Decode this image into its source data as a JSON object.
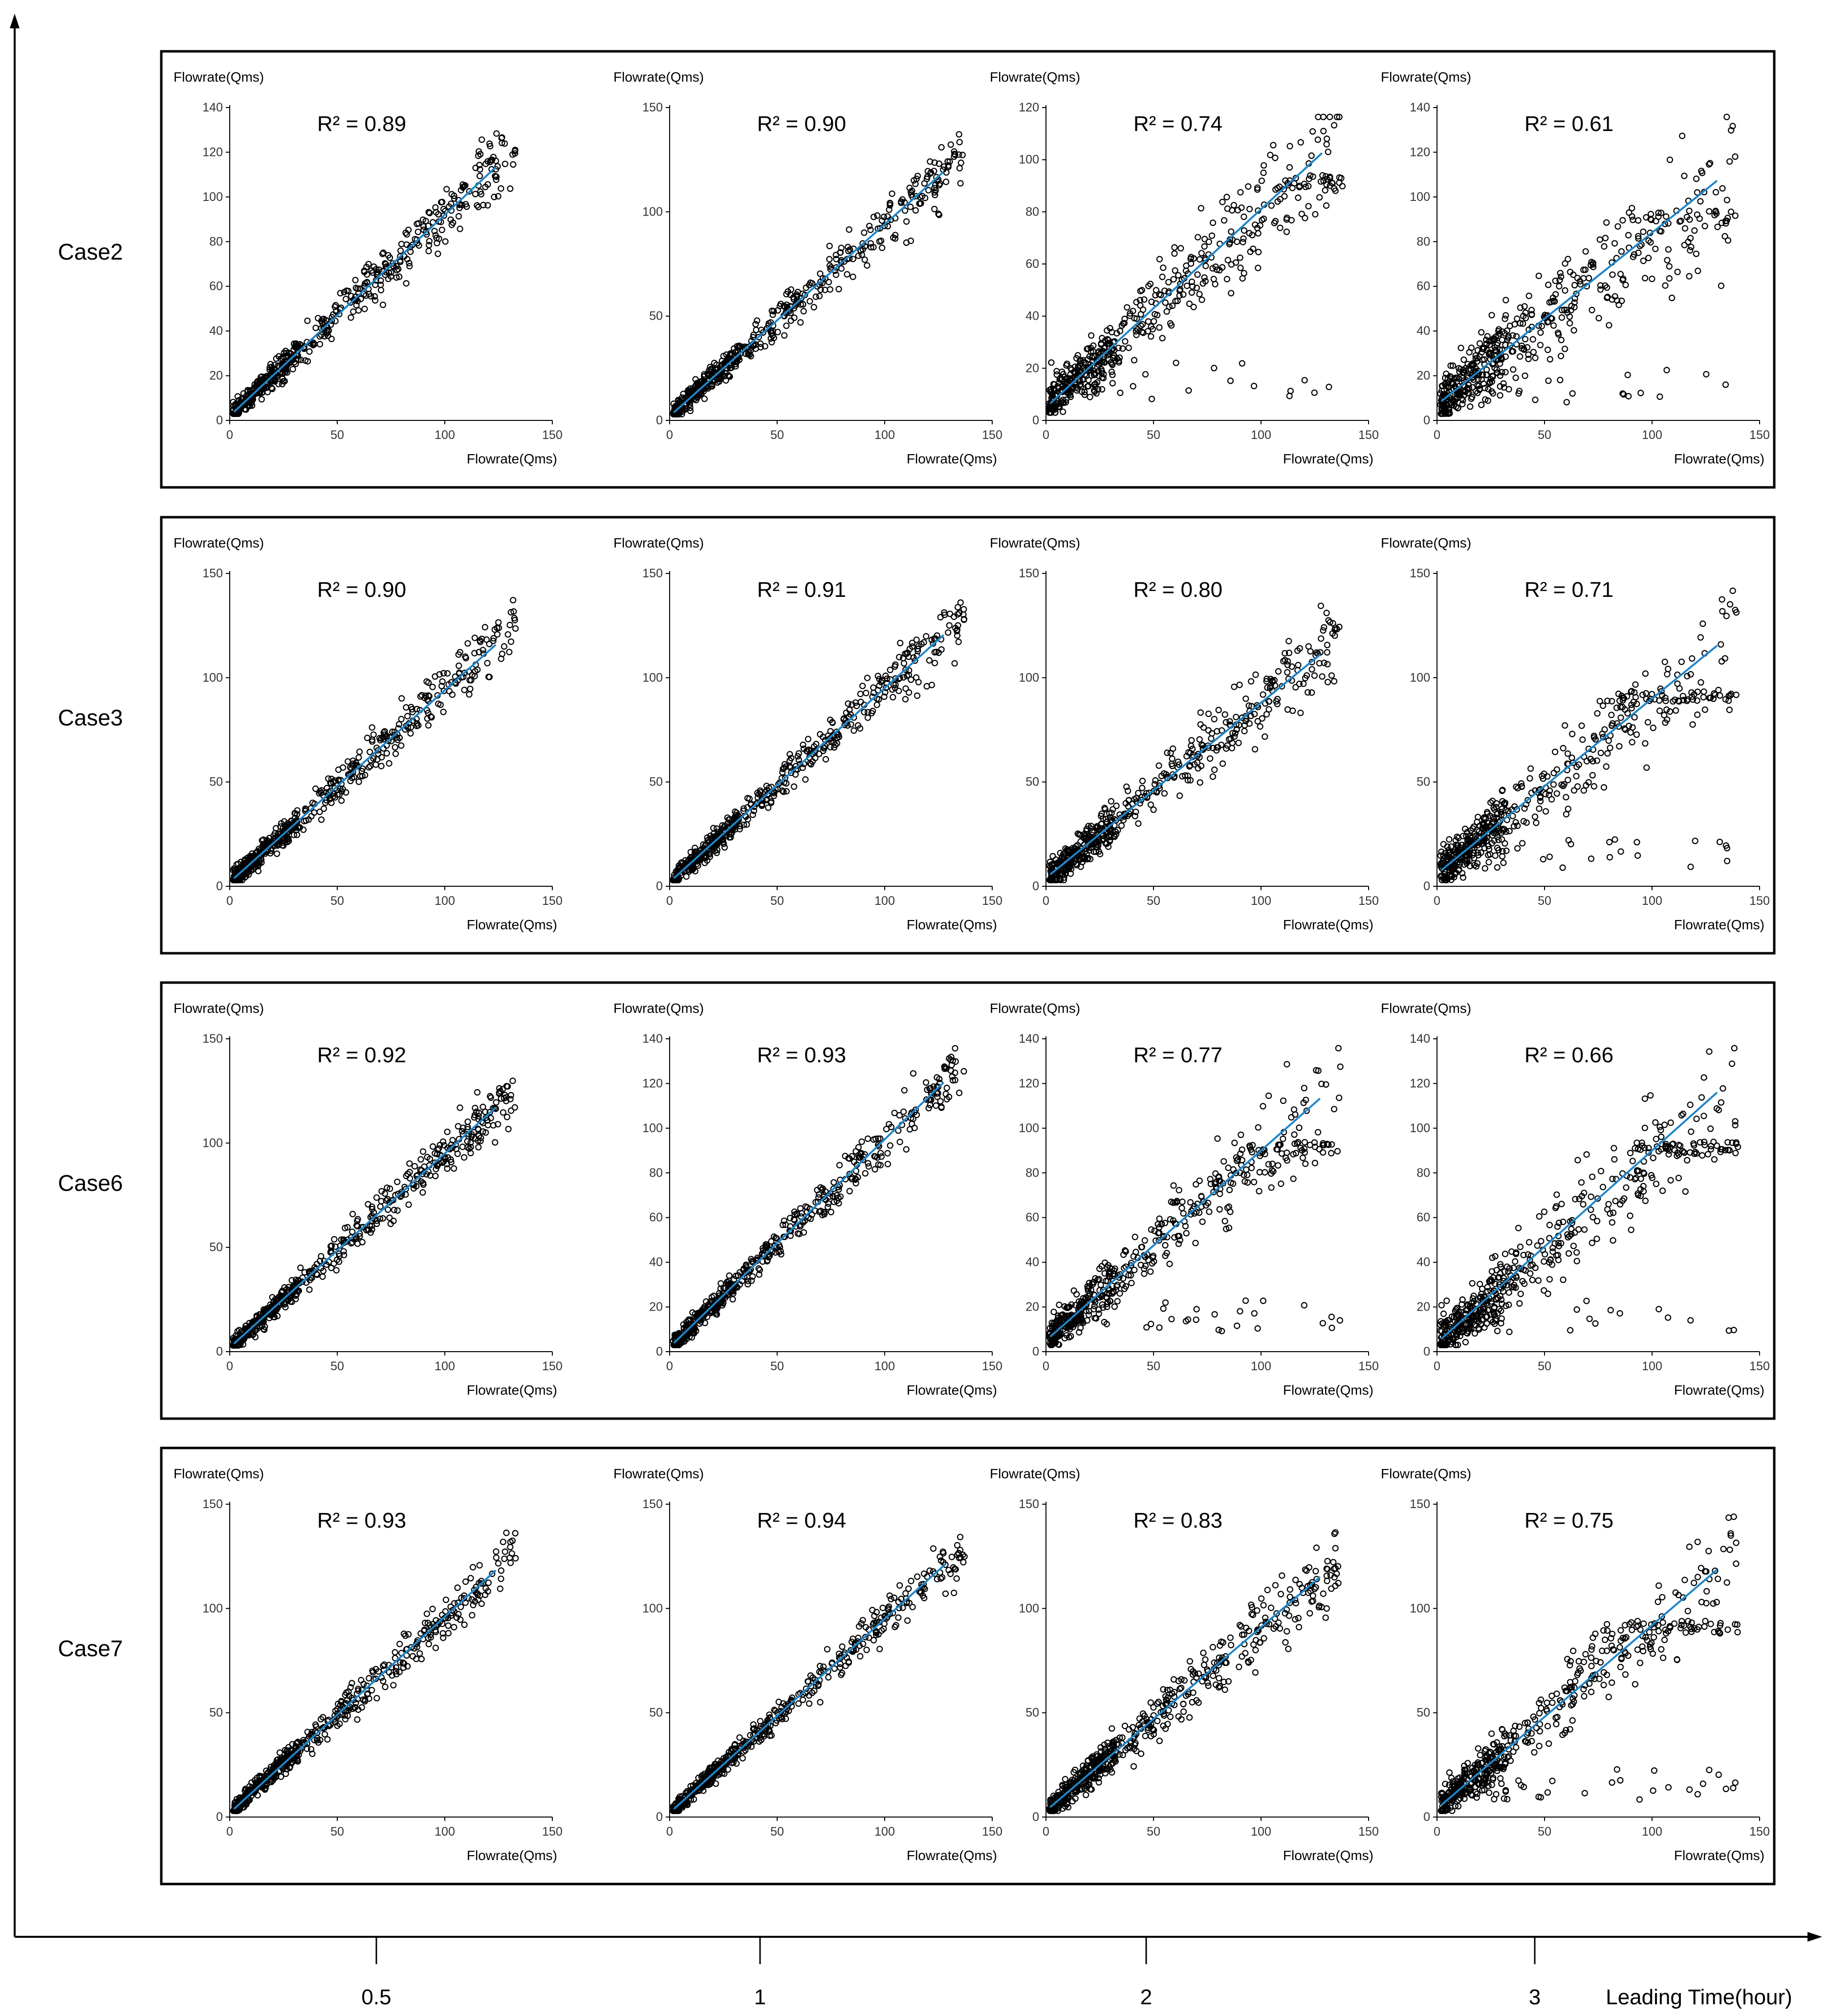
{
  "leading_time_axis": {
    "title": "Leading Time(hour)",
    "values": [
      "0.5",
      "1",
      "2",
      "3"
    ]
  },
  "chart_data": {
    "type": "scatter",
    "description_axis_titles": {
      "x": "Flowrate(Qms)",
      "y": "Flowrate(Qms)"
    },
    "rows": [
      {
        "case": "Case2",
        "panels": [
          {
            "lead": "0.5",
            "r2_text": "R² = 0.89",
            "xlim": [
              0,
              150
            ],
            "ylim": [
              0,
              140
            ],
            "xticks": [
              0,
              50,
              100,
              150
            ],
            "yticks": [
              0,
              20,
              40,
              60,
              80,
              100,
              120,
              140
            ],
            "slope": 0.9,
            "intercept": 2,
            "xmax": 133,
            "seed": 11
          },
          {
            "lead": "1",
            "r2_text": "R² = 0.90",
            "xlim": [
              0,
              150
            ],
            "ylim": [
              0,
              150
            ],
            "xticks": [
              0,
              50,
              100,
              150
            ],
            "yticks": [
              0,
              50,
              100,
              150
            ],
            "slope": 0.92,
            "intercept": 2,
            "xmax": 137,
            "seed": 12
          },
          {
            "lead": "2",
            "r2_text": "R² = 0.74",
            "xlim": [
              0,
              150
            ],
            "ylim": [
              0,
              120
            ],
            "xticks": [
              0,
              50,
              100,
              150
            ],
            "yticks": [
              0,
              20,
              40,
              60,
              80,
              100,
              120
            ],
            "slope": 0.76,
            "intercept": 5,
            "xmax": 138,
            "seed": 13
          },
          {
            "lead": "3",
            "r2_text": "R² = 0.61",
            "xlim": [
              0,
              150
            ],
            "ylim": [
              0,
              140
            ],
            "xticks": [
              0,
              50,
              100,
              150
            ],
            "yticks": [
              0,
              20,
              40,
              60,
              80,
              100,
              120,
              140
            ],
            "slope": 0.77,
            "intercept": 7,
            "xmax": 140,
            "seed": 14
          }
        ]
      },
      {
        "case": "Case3",
        "panels": [
          {
            "lead": "0.5",
            "r2_text": "R² = 0.90",
            "xlim": [
              0,
              150
            ],
            "ylim": [
              0,
              150
            ],
            "xticks": [
              0,
              50,
              100,
              150
            ],
            "yticks": [
              0,
              50,
              100,
              150
            ],
            "slope": 0.92,
            "intercept": 2,
            "xmax": 133,
            "seed": 21
          },
          {
            "lead": "1",
            "r2_text": "R² = 0.91",
            "xlim": [
              0,
              150
            ],
            "ylim": [
              0,
              150
            ],
            "xticks": [
              0,
              50,
              100,
              150
            ],
            "yticks": [
              0,
              50,
              100,
              150
            ],
            "slope": 0.93,
            "intercept": 2,
            "xmax": 137,
            "seed": 22
          },
          {
            "lead": "2",
            "r2_text": "R² = 0.80",
            "xlim": [
              0,
              150
            ],
            "ylim": [
              0,
              150
            ],
            "xticks": [
              0,
              50,
              100,
              150
            ],
            "yticks": [
              0,
              50,
              100,
              150
            ],
            "slope": 0.84,
            "intercept": 4,
            "xmax": 137,
            "seed": 23
          },
          {
            "lead": "3",
            "r2_text": "R² = 0.71",
            "xlim": [
              0,
              150
            ],
            "ylim": [
              0,
              150
            ],
            "xticks": [
              0,
              50,
              100,
              150
            ],
            "yticks": [
              0,
              50,
              100,
              150
            ],
            "slope": 0.84,
            "intercept": 6,
            "xmax": 140,
            "seed": 24
          }
        ]
      },
      {
        "case": "Case6",
        "panels": [
          {
            "lead": "0.5",
            "r2_text": "R² = 0.92",
            "xlim": [
              0,
              150
            ],
            "ylim": [
              0,
              150
            ],
            "xticks": [
              0,
              50,
              100,
              150
            ],
            "yticks": [
              0,
              50,
              100,
              150
            ],
            "slope": 0.93,
            "intercept": 2,
            "xmax": 133,
            "seed": 31
          },
          {
            "lead": "1",
            "r2_text": "R² = 0.93",
            "xlim": [
              0,
              150
            ],
            "ylim": [
              0,
              140
            ],
            "xticks": [
              0,
              50,
              100,
              150
            ],
            "yticks": [
              0,
              20,
              40,
              60,
              80,
              100,
              120,
              140
            ],
            "slope": 0.93,
            "intercept": 2,
            "xmax": 137,
            "seed": 32
          },
          {
            "lead": "2",
            "r2_text": "R² = 0.77",
            "xlim": [
              0,
              150
            ],
            "ylim": [
              0,
              140
            ],
            "xticks": [
              0,
              50,
              100,
              150
            ],
            "yticks": [
              0,
              20,
              40,
              60,
              80,
              100,
              120,
              140
            ],
            "slope": 0.85,
            "intercept": 5,
            "xmax": 137,
            "seed": 33
          },
          {
            "lead": "3",
            "r2_text": "R² = 0.66",
            "xlim": [
              0,
              150
            ],
            "ylim": [
              0,
              140
            ],
            "xticks": [
              0,
              50,
              100,
              150
            ],
            "yticks": [
              0,
              20,
              40,
              60,
              80,
              100,
              120,
              140
            ],
            "slope": 0.86,
            "intercept": 4,
            "xmax": 140,
            "seed": 34
          }
        ]
      },
      {
        "case": "Case7",
        "panels": [
          {
            "lead": "0.5",
            "r2_text": "R² = 0.93",
            "xlim": [
              0,
              150
            ],
            "ylim": [
              0,
              150
            ],
            "xticks": [
              0,
              50,
              100,
              150
            ],
            "yticks": [
              0,
              50,
              100,
              150
            ],
            "slope": 0.94,
            "intercept": 2,
            "xmax": 133,
            "seed": 41
          },
          {
            "lead": "1",
            "r2_text": "R² = 0.94",
            "xlim": [
              0,
              150
            ],
            "ylim": [
              0,
              150
            ],
            "xticks": [
              0,
              50,
              100,
              150
            ],
            "yticks": [
              0,
              50,
              100,
              150
            ],
            "slope": 0.93,
            "intercept": 2,
            "xmax": 138,
            "seed": 42
          },
          {
            "lead": "2",
            "r2_text": "R² = 0.83",
            "xlim": [
              0,
              150
            ],
            "ylim": [
              0,
              150
            ],
            "xticks": [
              0,
              50,
              100,
              150
            ],
            "yticks": [
              0,
              50,
              100,
              150
            ],
            "slope": 0.88,
            "intercept": 3,
            "xmax": 137,
            "seed": 43
          },
          {
            "lead": "3",
            "r2_text": "R² = 0.75",
            "xlim": [
              0,
              150
            ],
            "ylim": [
              0,
              150
            ],
            "xticks": [
              0,
              50,
              100,
              150
            ],
            "yticks": [
              0,
              50,
              100,
              150
            ],
            "slope": 0.88,
            "intercept": 4,
            "xmax": 140,
            "seed": 44
          }
        ]
      }
    ]
  },
  "colors": {
    "trendline": "#1f86c8",
    "points": "#000000",
    "frame": "#000000"
  }
}
